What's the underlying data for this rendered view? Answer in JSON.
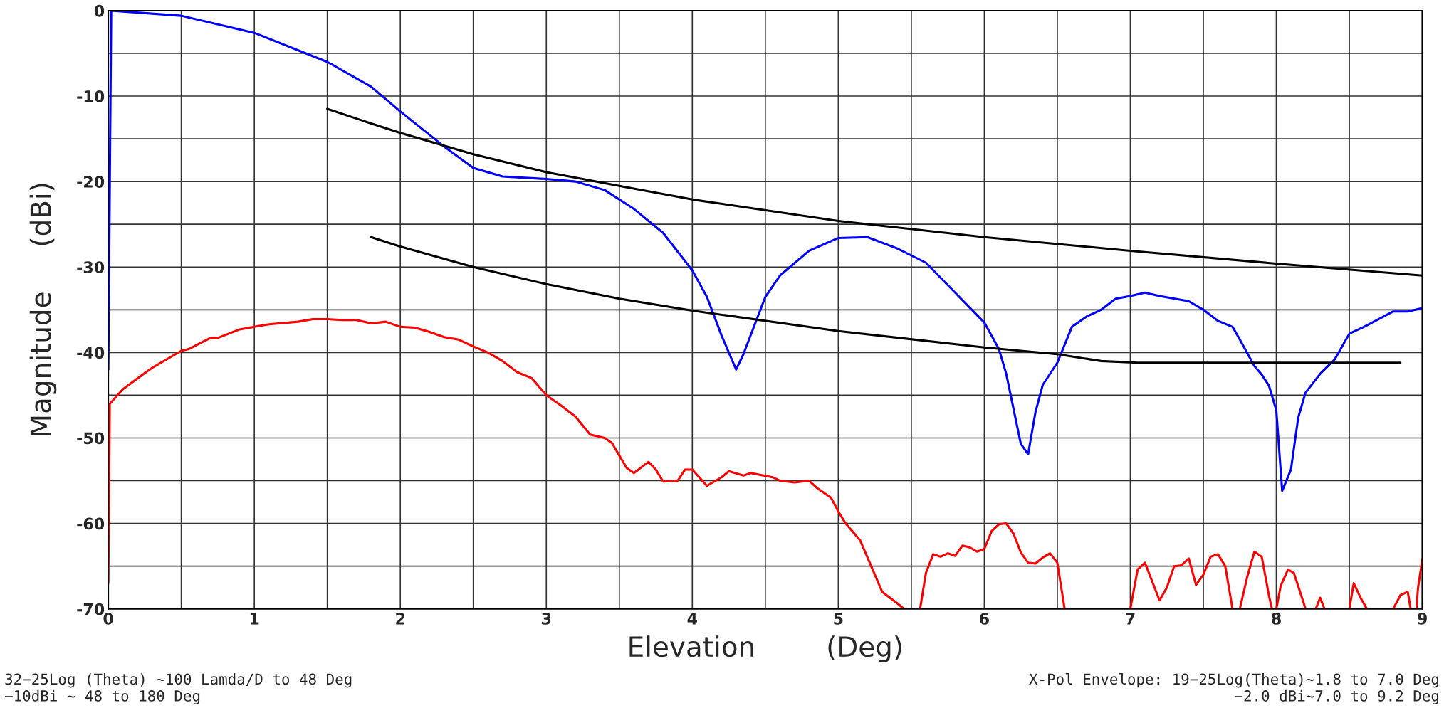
{
  "chart_data": {
    "type": "line",
    "xlabel": "Elevation        (Deg)",
    "ylabel": "Magnitude     (dBi)",
    "xlim": [
      0,
      9
    ],
    "ylim": [
      -70,
      0
    ],
    "xticks": [
      0,
      {
        "value": 0.5,
        "label": null
      },
      1,
      {
        "value": 1.5,
        "label": null
      },
      2,
      {
        "value": 2.5,
        "label": null
      },
      3,
      {
        "value": 3.5,
        "label": null
      },
      4,
      {
        "value": 4.5,
        "label": null
      },
      5,
      {
        "value": 5.5,
        "label": null
      },
      6,
      {
        "value": 6.5,
        "label": null
      },
      7,
      {
        "value": 7.5,
        "label": null
      },
      8,
      {
        "value": 8.5,
        "label": null
      },
      9
    ],
    "yticks": [
      -70,
      {
        "value": -65,
        "label": null
      },
      -60,
      {
        "value": -55,
        "label": null
      },
      -50,
      {
        "value": -45,
        "label": null
      },
      -40,
      {
        "value": -35,
        "label": null
      },
      -30,
      {
        "value": -25,
        "label": null
      },
      -20,
      {
        "value": -15,
        "label": null
      },
      -10,
      {
        "value": -5,
        "label": null
      },
      0
    ],
    "grid": true,
    "legend": false,
    "marker": "none",
    "line_style": "solid",
    "annotations": [
      "32−25Log (Theta) ~100 Lamda/D to 48 Deg\n−10dBi ~ 48 to 180 Deg",
      "X-Pol Envelope: 19−25Log(Theta)~1.8 to 7.0 Deg\n−2.0 dBi~7.0 to 9.2 Deg"
    ],
    "series": [
      {
        "color": "#0000ff",
        "x": [
          0,
          0.02,
          0.5,
          1,
          1.5,
          1.8,
          2,
          2.3,
          2.5,
          2.7,
          3,
          3.2,
          3.4,
          3.6,
          3.8,
          4,
          4.1,
          4.2,
          4.3,
          4.35,
          4.5,
          4.6,
          4.8,
          5,
          5.2,
          5.4,
          5.6,
          5.8,
          6,
          6.1,
          6.15,
          6.25,
          6.3,
          6.35,
          6.4,
          6.5,
          6.6,
          6.7,
          6.8,
          6.9,
          7,
          7.1,
          7.2,
          7.4,
          7.5,
          7.6,
          7.7,
          7.75,
          7.85,
          7.9,
          7.95,
          8.0,
          8.04,
          8.1,
          8.15,
          8.2,
          8.3,
          8.4,
          8.5,
          8.6,
          8.7,
          8.8,
          8.9,
          9
        ],
        "values": [
          -42,
          0,
          -0.6,
          -2.6,
          -6,
          -8.9,
          -11.8,
          -15.9,
          -18.4,
          -19.4,
          -19.7,
          -20,
          -21,
          -23.2,
          -26,
          -30.4,
          -33.5,
          -38,
          -42,
          -40.2,
          -33.5,
          -31,
          -28.1,
          -26.6,
          -26.5,
          -27.8,
          -29.5,
          -33,
          -36.5,
          -39.6,
          -42.5,
          -50.7,
          -51.9,
          -47,
          -43.8,
          -41.2,
          -37,
          -35.8,
          -35,
          -33.7,
          -33.4,
          -33,
          -33.4,
          -34,
          -35,
          -36.3,
          -37,
          -38.5,
          -41.6,
          -42.6,
          -43.9,
          -46.8,
          -56.2,
          -53.7,
          -47.6,
          -44.7,
          -42.5,
          -40.8,
          -37.8,
          -37,
          -36.1,
          -35.2,
          -35.2,
          -34.8
        ]
      },
      {
        "color": "#ff0000",
        "x": [
          0,
          0.01,
          0.1,
          0.25,
          0.3,
          0.5,
          0.55,
          0.7,
          0.75,
          0.9,
          1,
          1.1,
          1.3,
          1.4,
          1.5,
          1.6,
          1.7,
          1.8,
          1.9,
          2.0,
          2.1,
          2.2,
          2.3,
          2.4,
          2.5,
          2.6,
          2.7,
          2.8,
          2.9,
          3.0,
          3.1,
          3.2,
          3.3,
          3.4,
          3.45,
          3.55,
          3.6,
          3.7,
          3.75,
          3.8,
          3.9,
          3.95,
          4.0,
          4.1,
          4.2,
          4.25,
          4.35,
          4.4,
          4.55,
          4.6,
          4.7,
          4.8,
          4.85,
          4.95,
          5.0,
          5.05,
          5.15,
          5.25,
          5.3,
          5.4,
          5.45,
          5.5,
          5.56,
          5.6,
          5.65,
          5.7,
          5.75,
          5.8,
          5.85,
          5.9,
          5.95,
          6.0,
          6.05,
          6.1,
          6.15,
          6.2,
          6.25,
          6.3,
          6.35,
          6.4,
          6.45,
          6.5,
          6.55,
          6.8,
          7.0,
          7.05,
          7.1,
          7.15,
          7.2,
          7.25,
          7.3,
          7.35,
          7.4,
          7.45,
          7.5,
          7.55,
          7.6,
          7.65,
          7.7,
          7.72,
          7.75,
          7.8,
          7.85,
          7.9,
          7.95,
          7.97,
          7.99,
          8.0,
          8.03,
          8.08,
          8.12,
          8.17,
          8.2,
          8.23,
          8.27,
          8.3,
          8.33,
          8.4,
          8.5,
          8.53,
          8.58,
          8.62,
          8.7,
          8.8,
          8.85,
          8.9,
          8.92,
          8.94,
          8.96,
          8.97,
          9.0
        ],
        "values": [
          -67,
          -46,
          -44.3,
          -42.4,
          -41.8,
          -39.8,
          -39.6,
          -38.3,
          -38.3,
          -37.3,
          -37,
          -36.7,
          -36.4,
          -36.1,
          -36.1,
          -36.2,
          -36.2,
          -36.6,
          -36.4,
          -37.0,
          -37.1,
          -37.6,
          -38.2,
          -38.5,
          -39.3,
          -40,
          -41,
          -42.3,
          -43,
          -45,
          -46.2,
          -47.5,
          -49.6,
          -50,
          -50.6,
          -53.5,
          -54.1,
          -52.8,
          -53.7,
          -55.1,
          -55,
          -53.7,
          -53.7,
          -55.6,
          -54.6,
          -53.9,
          -54.4,
          -54.1,
          -54.6,
          -55,
          -55.2,
          -55,
          -55.8,
          -57,
          -58.6,
          -60,
          -62,
          -66,
          -68,
          -69.3,
          -70,
          null,
          -70,
          -65.8,
          -63.6,
          -63.9,
          -63.5,
          -63.8,
          -62.6,
          -62.8,
          -63.3,
          -63,
          -60.9,
          -60.1,
          -60,
          -61.2,
          -63.4,
          -64.6,
          -64.7,
          -64,
          -63.5,
          -64.6,
          -70,
          null,
          -70,
          -65.4,
          -64.6,
          -66.8,
          -69,
          -67.5,
          -65,
          -64.9,
          -64.1,
          -67.2,
          -66,
          -63.9,
          -63.6,
          -65,
          -70,
          null,
          -70,
          -66.3,
          -63.3,
          -63.9,
          -68.5,
          -70,
          null,
          -70,
          -67.3,
          -65.4,
          -65.8,
          -68.4,
          -70,
          null,
          -70,
          -68.7,
          -70,
          null,
          -70,
          -67,
          -68.8,
          -70,
          null,
          -70,
          -68.4,
          -68,
          -70,
          null,
          -70,
          -67.6,
          -64.2
        ]
      },
      {
        "color": "#000000",
        "x": [
          1.5,
          1.8,
          2,
          2.5,
          3,
          3.5,
          4,
          5,
          6,
          7,
          8,
          9
        ],
        "values": [
          -11.5,
          -13.2,
          -14.3,
          -16.8,
          -18.9,
          -20.5,
          -22.1,
          -24.6,
          -26.5,
          -28.1,
          -29.6,
          -31
        ]
      },
      {
        "color": "#000000",
        "x": [
          1.8,
          2,
          2.5,
          3,
          3.5,
          4,
          5,
          6,
          6.5,
          6.8,
          7.05,
          8.85
        ],
        "values": [
          -26.5,
          -27.6,
          -30,
          -32,
          -33.7,
          -35.1,
          -37.5,
          -39.4,
          -40.2,
          -41,
          -41.2,
          -41.2
        ]
      }
    ]
  }
}
